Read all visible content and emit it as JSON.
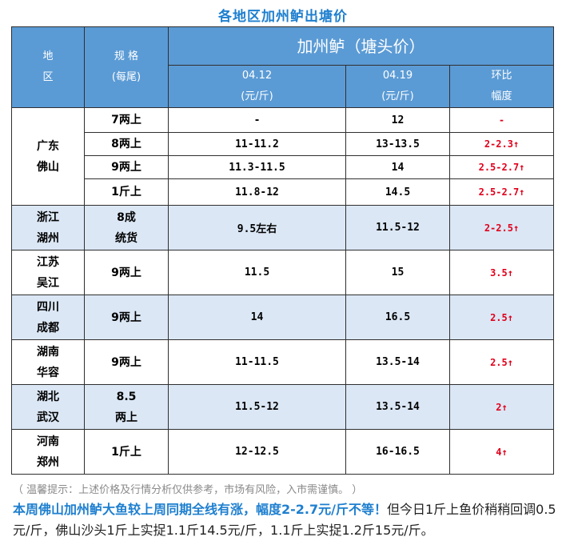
{
  "title": "各地区加州鲈出塘价",
  "header": {
    "region_line1": "地",
    "region_line2": "区",
    "spec_line1": "规 格",
    "spec_line2": "(每尾)",
    "group": "加州鲈（塘头价）",
    "date1": "04.12",
    "unit1": "(元/斤)",
    "date2": "04.19",
    "unit2": "(元/斤)",
    "change_line1": "环比",
    "change_line2": "幅度"
  },
  "guangdong": {
    "region_line1": "广东",
    "region_line2": "佛山",
    "rows": [
      {
        "spec": "7两上",
        "p1": "-",
        "p2": "12",
        "chg": "-"
      },
      {
        "spec": "8两上",
        "p1": "11-11.2",
        "p2": "13-13.5",
        "chg": "2-2.3↑"
      },
      {
        "spec": "9两上",
        "p1": "11.3-11.5",
        "p2": "14",
        "chg": "2.5-2.7↑"
      },
      {
        "spec": "1斤上",
        "p1": "11.8-12",
        "p2": "14.5",
        "chg": "2.5-2.7↑"
      }
    ]
  },
  "regions": [
    {
      "r1": "浙江",
      "r2": "湖州",
      "s1": "8成",
      "s2": "统货",
      "p1": "9.5左右",
      "p2": "11.5-12",
      "chg": "2-2.5↑"
    },
    {
      "r1": "江苏",
      "r2": "吴江",
      "s1": "9两上",
      "s2": "",
      "p1": "11.5",
      "p2": "15",
      "chg": "3.5↑"
    },
    {
      "r1": "四川",
      "r2": "成都",
      "s1": "9两上",
      "s2": "",
      "p1": "14",
      "p2": "16.5",
      "chg": "2.5↑"
    },
    {
      "r1": "湖南",
      "r2": "华容",
      "s1": "9两上",
      "s2": "",
      "p1": "11-11.5",
      "p2": "13.5-14",
      "chg": "2.5↑"
    },
    {
      "r1": "湖北",
      "r2": "武汉",
      "s1": "8.5",
      "s2": "两上",
      "p1": "11.5-12",
      "p2": "13.5-14",
      "chg": "2↑"
    },
    {
      "r1": "河南",
      "r2": "郑州",
      "s1": "1斤上",
      "s2": "",
      "p1": "12-12.5",
      "p2": "16-16.5",
      "chg": "4↑"
    }
  ],
  "note": "（ 温馨提示：上述价格及行情分析仅供参考，市场有风险，入市需谨慎。 ）",
  "summary_highlight": "本周佛山加州鲈大鱼较上周同期全线有涨，幅度2-2.7元/斤不等！",
  "summary_rest": "但今日1斤上鱼价稍稍回调0.5元/斤，佛山沙头1斤上实捉1.1斤14.5元/斤，1.1斤上实捉1.2斤15元/斤。"
}
